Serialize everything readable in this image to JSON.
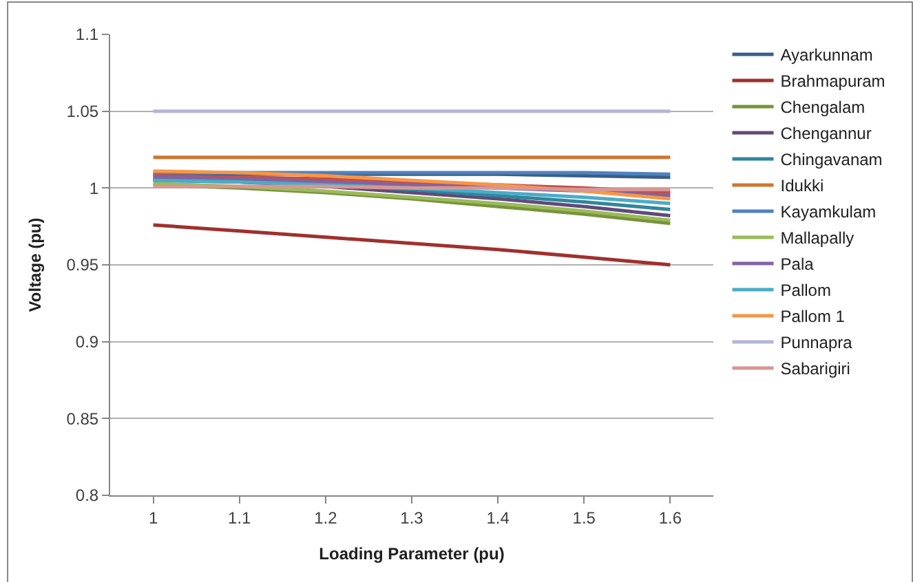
{
  "chart_data": {
    "type": "line",
    "xlabel": "Loading Parameter (pu)",
    "ylabel": "Voltage (pu)",
    "categories": [
      "1",
      "1.1",
      "1.2",
      "1.3",
      "1.4",
      "1.5",
      "1.6"
    ],
    "ylim": [
      0.8,
      1.1
    ],
    "yticks": [
      0.8,
      0.85,
      0.9,
      0.95,
      1,
      1.05,
      1.1
    ],
    "grid": "y",
    "legend": "right",
    "marker": "none",
    "line_style": "solid",
    "series": [
      {
        "name": "Ayarkunnam",
        "color": "#385d8a",
        "values": [
          1.009,
          1.009,
          1.009,
          1.009,
          1.009,
          1.008,
          1.007
        ]
      },
      {
        "name": "Brahmapuram",
        "color": "#a0302d",
        "values": [
          0.976,
          0.972,
          0.968,
          0.964,
          0.96,
          0.955,
          0.95
        ]
      },
      {
        "name": "Chengalam",
        "color": "#77933c",
        "values": [
          1.002,
          1.0,
          0.997,
          0.993,
          0.988,
          0.983,
          0.977
        ]
      },
      {
        "name": "Chengannur",
        "color": "#604a7b",
        "values": [
          1.006,
          1.004,
          1.001,
          0.997,
          0.993,
          0.988,
          0.982
        ]
      },
      {
        "name": "Chingavanam",
        "color": "#31859c",
        "values": [
          1.005,
          1.004,
          1.002,
          0.999,
          0.995,
          0.991,
          0.986
        ]
      },
      {
        "name": "Idukki",
        "color": "#d0752f",
        "values": [
          1.02,
          1.02,
          1.02,
          1.02,
          1.02,
          1.02,
          1.02
        ]
      },
      {
        "name": "Kayamkulam",
        "color": "#4f81bd",
        "values": [
          1.01,
          1.01,
          1.01,
          1.01,
          1.01,
          1.01,
          1.009
        ]
      },
      {
        "color": "#c0504d",
        "values": [
          1.008,
          1.007,
          1.006,
          1.004,
          1.002,
          1.0,
          0.997
        ]
      },
      {
        "name": "Mallapally",
        "color": "#9bbb59",
        "values": [
          1.003,
          1.001,
          0.998,
          0.994,
          0.99,
          0.985,
          0.979
        ]
      },
      {
        "name": "Pala",
        "color": "#8064a2",
        "values": [
          1.007,
          1.006,
          1.004,
          1.002,
          1.0,
          0.998,
          0.995
        ]
      },
      {
        "name": "Pallom",
        "color": "#4bacc6",
        "values": [
          1.005,
          1.004,
          1.002,
          1.0,
          0.997,
          0.994,
          0.99
        ]
      },
      {
        "name": "Pallom 1",
        "color": "#f79646",
        "values": [
          1.011,
          1.01,
          1.008,
          1.005,
          1.002,
          0.998,
          0.993
        ]
      },
      {
        "name": "Punnapra",
        "color": "#b4b6d6",
        "values": [
          1.05,
          1.05,
          1.05,
          1.05,
          1.05,
          1.05,
          1.05
        ]
      },
      {
        "name": "Sabarigiri",
        "color": "#d99694",
        "values": [
          1.001,
          1.001,
          1.001,
          1.0,
          1.0,
          0.999,
          0.999
        ]
      }
    ]
  }
}
